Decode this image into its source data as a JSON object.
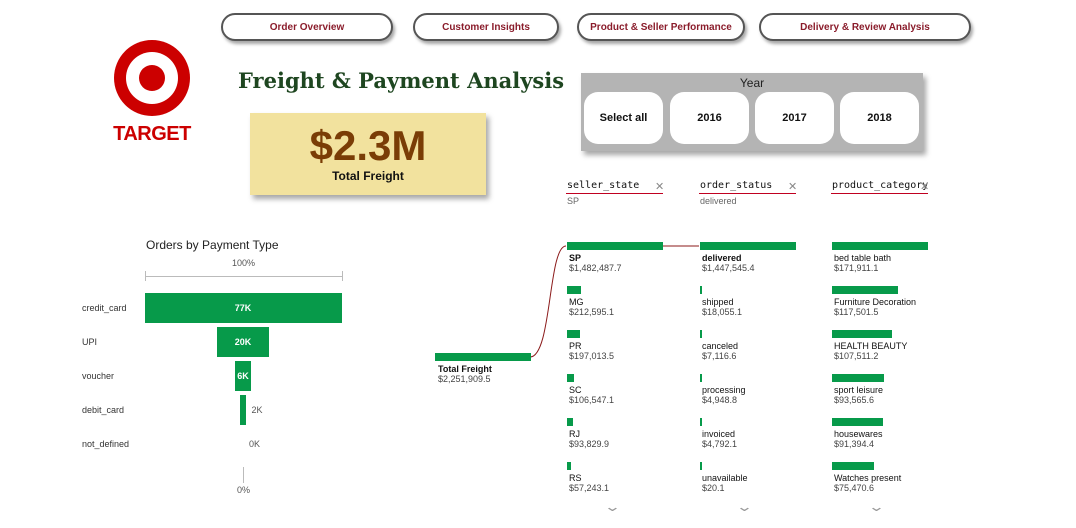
{
  "nav": {
    "order_overview": "Order Overview",
    "customer_insights": "Customer Insights",
    "product_seller": "Product & Seller Performance",
    "delivery_review": "Delivery & Review Analysis"
  },
  "logo": {
    "text": "TARGET"
  },
  "page_title": "Freight & Payment Analysis",
  "kpi": {
    "value": "$2.3M",
    "label": "Total Freight"
  },
  "year_slicer": {
    "title": "Year",
    "options": [
      "Select all",
      "2016",
      "2017",
      "2018"
    ]
  },
  "filters": {
    "seller_state": {
      "name": "seller_state",
      "value": "SP"
    },
    "order_status": {
      "name": "order_status",
      "value": "delivered"
    },
    "product_category": {
      "name": "product_category",
      "value": ""
    },
    "clear_glyph": "✕",
    "more_glyph": "⌄"
  },
  "decomposition": {
    "root": {
      "label": "Total Freight",
      "value": "$2,251,909.5",
      "amount": 2251909.5
    },
    "seller_state": [
      {
        "label": "SP",
        "value": "$1,482,487.7",
        "amount": 1482487.7
      },
      {
        "label": "MG",
        "value": "$212,595.1",
        "amount": 212595.1
      },
      {
        "label": "PR",
        "value": "$197,013.5",
        "amount": 197013.5
      },
      {
        "label": "SC",
        "value": "$106,547.1",
        "amount": 106547.1
      },
      {
        "label": "RJ",
        "value": "$93,829.9",
        "amount": 93829.9
      },
      {
        "label": "RS",
        "value": "$57,243.1",
        "amount": 57243.1
      }
    ],
    "order_status": [
      {
        "label": "delivered",
        "value": "$1,447,545.4",
        "amount": 1447545.4
      },
      {
        "label": "shipped",
        "value": "$18,055.1",
        "amount": 18055.1
      },
      {
        "label": "canceled",
        "value": "$7,116.6",
        "amount": 7116.6
      },
      {
        "label": "processing",
        "value": "$4,948.8",
        "amount": 4948.8
      },
      {
        "label": "invoiced",
        "value": "$4,792.1",
        "amount": 4792.1
      },
      {
        "label": "unavailable",
        "value": "$20.1",
        "amount": 20.1
      }
    ],
    "product_category": [
      {
        "label": "bed table bath",
        "value": "$171,911.1",
        "amount": 171911.1
      },
      {
        "label": "Furniture Decoration",
        "value": "$117,501.5",
        "amount": 117501.5
      },
      {
        "label": "HEALTH BEAUTY",
        "value": "$107,511.2",
        "amount": 107511.2
      },
      {
        "label": "sport leisure",
        "value": "$93,565.6",
        "amount": 93565.6
      },
      {
        "label": "housewares",
        "value": "$91,394.4",
        "amount": 91394.4
      },
      {
        "label": "Watches present",
        "value": "$75,470.6",
        "amount": 75470.6
      }
    ]
  },
  "funnel": {
    "title": "Orders by Payment Type",
    "top_percent": "100%",
    "bottom_percent": "0%",
    "max": 77,
    "items": [
      {
        "category": "credit_card",
        "label": "77K",
        "value": 77
      },
      {
        "category": "UPI",
        "label": "20K",
        "value": 20
      },
      {
        "category": "voucher",
        "label": "6K",
        "value": 6
      },
      {
        "category": "debit_card",
        "label": "2K",
        "value": 2
      },
      {
        "category": "not_defined",
        "label": "0K",
        "value": 0
      }
    ]
  },
  "colors": {
    "accent_green": "#079a4a",
    "nav_text": "#8a1c2b",
    "kpi_bg": "#f2e29e",
    "kpi_text": "#7a3d06",
    "title": "#1e4620",
    "logo_red": "#cc0000"
  }
}
